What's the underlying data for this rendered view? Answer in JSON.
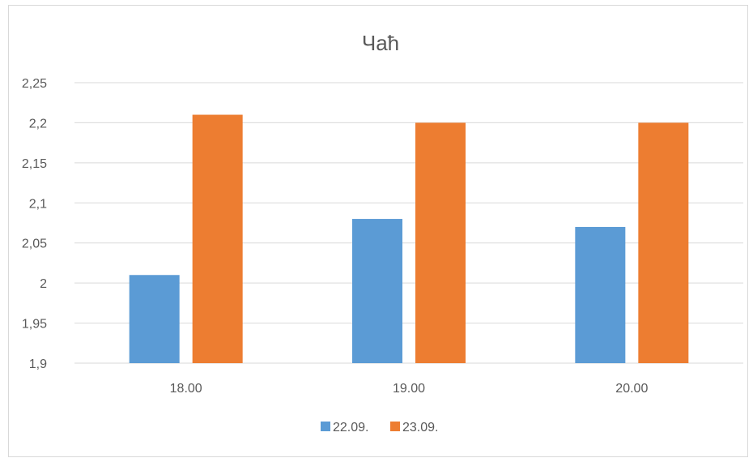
{
  "chart_data": {
    "type": "bar",
    "title": "Чаћ",
    "xlabel": "",
    "ylabel": "",
    "categories": [
      "18.00",
      "19.00",
      "20.00"
    ],
    "series": [
      {
        "name": "22.09.",
        "color": "#5b9bd5",
        "values": [
          2.01,
          2.08,
          2.07
        ]
      },
      {
        "name": "23.09.",
        "color": "#ed7d31",
        "values": [
          2.21,
          2.2,
          2.2
        ]
      }
    ],
    "ylim": [
      1.9,
      2.25
    ],
    "yticks": [
      "1,9",
      "1,95",
      "2",
      "2,05",
      "2,1",
      "2,15",
      "2,2",
      "2,25"
    ],
    "ytick_values": [
      1.9,
      1.95,
      2.0,
      2.05,
      2.1,
      2.15,
      2.2,
      2.25
    ],
    "grid": true,
    "legend_position": "bottom-center",
    "colors": {
      "grid": "#d9d9d9",
      "text": "#595959"
    }
  }
}
